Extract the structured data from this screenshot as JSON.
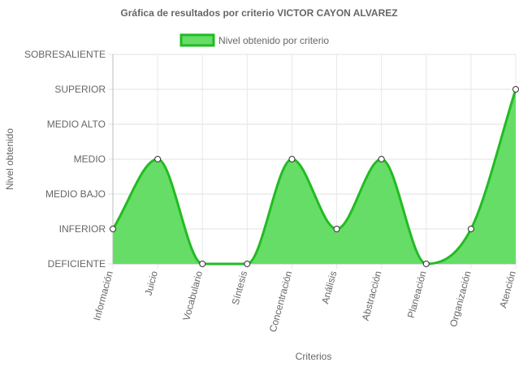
{
  "chart_data": {
    "type": "area",
    "title": "Gráfica de resultados por criterio VICTOR CAYON ALVAREZ",
    "xlabel": "Criterios",
    "ylabel": "Nivel obtenido",
    "legend_position": "top",
    "grid": true,
    "levels": [
      "DEFICIENTE",
      "INFERIOR",
      "MEDIO BAJO",
      "MEDIO",
      "MEDIO ALTO",
      "SUPERIOR",
      "SOBRESALIENTE"
    ],
    "ylim": [
      0,
      6
    ],
    "categories": [
      "Información",
      "Juicio",
      "Vocabulario",
      "Síntesis",
      "Concentración",
      "Análisis",
      "Abstracción",
      "Planeación",
      "Organización",
      "Atención"
    ],
    "series": [
      {
        "name": "Nivel obtenido por criterio",
        "values": [
          1,
          3,
          0,
          0,
          3,
          1,
          3,
          0,
          1,
          5
        ],
        "fill_color": "#66dd66",
        "line_color": "#22bb22"
      }
    ]
  }
}
